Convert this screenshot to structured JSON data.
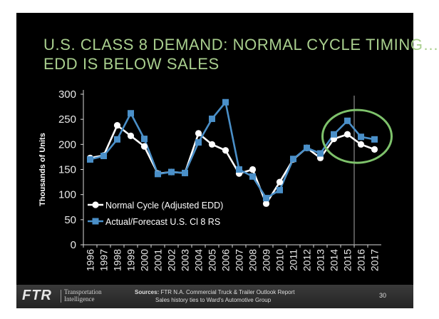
{
  "title_line1": "U.S. CLASS 8 DEMAND: NORMAL CYCLE TIMING…",
  "title_line2": "EDD IS BELOW SALES",
  "chart_data": {
    "type": "line",
    "title": "U.S. CLASS 8 DEMAND: NORMAL CYCLE TIMING… EDD IS BELOW SALES",
    "xlabel": "",
    "ylabel": "Thousands of Units",
    "x": [
      "1996",
      "1997",
      "1998",
      "1999",
      "2000",
      "2001",
      "2002",
      "2003",
      "2004",
      "2005",
      "2006",
      "2007",
      "2008",
      "2009",
      "2010",
      "2011",
      "2012",
      "2013",
      "2014",
      "2015",
      "2016",
      "2017"
    ],
    "ylim": [
      0,
      300
    ],
    "yticks": [
      0,
      50,
      100,
      150,
      200,
      250,
      300
    ],
    "grid": false,
    "legend": "bottom-left",
    "series": [
      {
        "name": "Normal Cycle (Adjusted EDD)",
        "color": "#ffffff",
        "marker": "circle",
        "values": [
          173,
          178,
          238,
          217,
          196,
          142,
          145,
          143,
          222,
          200,
          188,
          142,
          150,
          82,
          125,
          170,
          193,
          173,
          211,
          220,
          200,
          190
        ]
      },
      {
        "name": "Actual/Forecast U.S. Cl 8 RS",
        "color": "#4a8fc8",
        "marker": "square",
        "values": [
          170,
          177,
          210,
          262,
          211,
          141,
          145,
          143,
          204,
          251,
          284,
          150,
          136,
          93,
          109,
          171,
          193,
          182,
          220,
          247,
          215,
          210
        ]
      }
    ],
    "annotations": [
      {
        "type": "vertical-line",
        "at": "2015.5",
        "color": "#8c8c8c"
      },
      {
        "type": "ellipse-highlight",
        "range": [
          "2014",
          "2017"
        ],
        "color": "#7ec26b"
      }
    ]
  },
  "footer": {
    "logo": "FTR",
    "tagline_line1": "Transportation",
    "tagline_line2": "Intelligence",
    "sources_label": "Sources:",
    "sources_text": " FTR N.A. Commercial Truck & Trailer Outlook Report",
    "sources_line2": "Sales history ties to Ward's Automotive Group",
    "page_number": "30"
  }
}
